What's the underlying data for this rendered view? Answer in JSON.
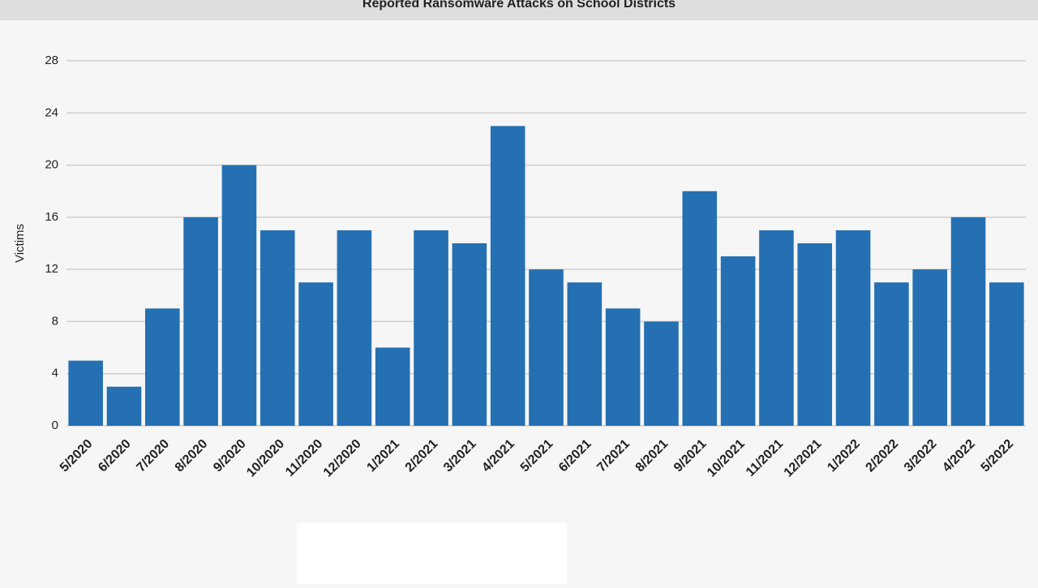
{
  "chart_data": {
    "type": "bar",
    "title": "Reported Ransomware Attacks on School Districts",
    "y_label": "Victims",
    "categories": [
      "5/2020",
      "6/2020",
      "7/2020",
      "8/2020",
      "9/2020",
      "10/2020",
      "11/2020",
      "12/2020",
      "1/2021",
      "2/2021",
      "3/2021",
      "4/2021",
      "5/2021",
      "6/2021",
      "7/2021",
      "8/2021",
      "9/2021",
      "10/2021",
      "11/2021",
      "12/2021",
      "1/2022",
      "2/2022",
      "3/2022",
      "4/2022",
      "5/2022"
    ],
    "values": [
      5,
      3,
      9,
      16,
      20,
      15,
      11,
      15,
      6,
      15,
      14,
      23,
      12,
      11,
      9,
      8,
      18,
      13,
      15,
      14,
      15,
      11,
      12,
      16,
      11
    ],
    "color": "#2470b3",
    "ylim": [
      0,
      28
    ],
    "yticks": [
      0,
      4,
      8,
      12,
      16,
      20,
      24,
      28
    ],
    "grid": true
  }
}
